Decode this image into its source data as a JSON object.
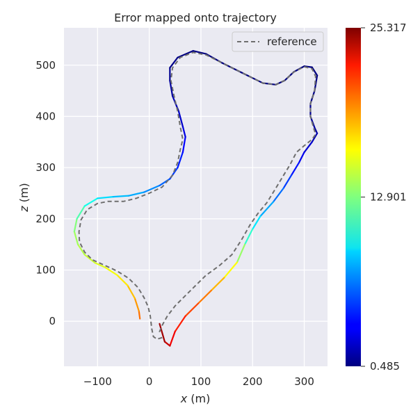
{
  "chart_data": {
    "type": "line",
    "title": "Error mapped onto trajectory",
    "xlabel": "x (m)",
    "ylabel": "z (m)",
    "xlim": [
      -165,
      345
    ],
    "ylim": [
      -88,
      573
    ],
    "xticks": [
      -100,
      0,
      100,
      200,
      300
    ],
    "xtick_labels": [
      "−100",
      "0",
      "100",
      "200",
      "300"
    ],
    "yticks": [
      0,
      100,
      200,
      300,
      400,
      500
    ],
    "ytick_labels": [
      "0",
      "100",
      "200",
      "300",
      "400",
      "500"
    ],
    "grid": true,
    "legend_position": "upper-right",
    "colormap": "jet",
    "colorbar": {
      "min": 0.485,
      "max": 25.317,
      "tick_labels": [
        "0.485",
        "12.901",
        "25.317"
      ],
      "tick_values": [
        0.485,
        12.901,
        25.317
      ]
    },
    "series": [
      {
        "name": "reference",
        "style": "dashed",
        "color": "#6e6e6e",
        "points": [
          [
            25,
            -32
          ],
          [
            15,
            -35
          ],
          [
            8,
            -30
          ],
          [
            5,
            -15
          ],
          [
            2,
            10
          ],
          [
            -2,
            28
          ],
          [
            -10,
            46
          ],
          [
            -22,
            66
          ],
          [
            -40,
            84
          ],
          [
            -62,
            98
          ],
          [
            -88,
            110
          ],
          [
            -110,
            120
          ],
          [
            -125,
            135
          ],
          [
            -135,
            155
          ],
          [
            -136,
            175
          ],
          [
            -132,
            198
          ],
          [
            -120,
            218
          ],
          [
            -100,
            230
          ],
          [
            -80,
            234
          ],
          [
            -50,
            234
          ],
          [
            -25,
            240
          ],
          [
            0,
            250
          ],
          [
            25,
            262
          ],
          [
            45,
            285
          ],
          [
            55,
            310
          ],
          [
            60,
            335
          ],
          [
            65,
            355
          ],
          [
            60,
            380
          ],
          [
            55,
            410
          ],
          [
            48,
            440
          ],
          [
            42,
            470
          ],
          [
            45,
            495
          ],
          [
            60,
            515
          ],
          [
            85,
            525
          ],
          [
            110,
            520
          ],
          [
            140,
            505
          ],
          [
            180,
            485
          ],
          [
            220,
            465
          ],
          [
            245,
            462
          ],
          [
            262,
            470
          ],
          [
            280,
            487
          ],
          [
            300,
            497
          ],
          [
            315,
            493
          ],
          [
            322,
            478
          ],
          [
            320,
            450
          ],
          [
            312,
            425
          ],
          [
            312,
            400
          ],
          [
            318,
            378
          ],
          [
            322,
            365
          ],
          [
            315,
            355
          ],
          [
            300,
            343
          ],
          [
            285,
            330
          ],
          [
            272,
            305
          ],
          [
            260,
            285
          ],
          [
            245,
            260
          ],
          [
            228,
            232
          ],
          [
            210,
            210
          ],
          [
            195,
            188
          ],
          [
            178,
            158
          ],
          [
            160,
            130
          ],
          [
            135,
            108
          ],
          [
            110,
            90
          ],
          [
            90,
            70
          ],
          [
            70,
            50
          ],
          [
            50,
            30
          ],
          [
            35,
            10
          ],
          [
            25,
            -8
          ],
          [
            18,
            -25
          ]
        ]
      },
      {
        "name": "",
        "style": "solid",
        "colored_by_error": true,
        "points": [
          [
            -18,
            5,
            20
          ],
          [
            -20,
            20,
            19
          ],
          [
            -28,
            45,
            18
          ],
          [
            -42,
            70,
            17
          ],
          [
            -62,
            90,
            16
          ],
          [
            -85,
            105,
            15.5
          ],
          [
            -105,
            114,
            15
          ],
          [
            -125,
            130,
            14.5
          ],
          [
            -138,
            150,
            14
          ],
          [
            -145,
            175,
            13.5
          ],
          [
            -140,
            200,
            12.5
          ],
          [
            -125,
            225,
            11
          ],
          [
            -100,
            240,
            9.5
          ],
          [
            -70,
            243,
            8.5
          ],
          [
            -40,
            245,
            8
          ],
          [
            -10,
            252,
            7.5
          ],
          [
            20,
            265,
            6.5
          ],
          [
            40,
            278,
            5.5
          ],
          [
            55,
            300,
            4.5
          ],
          [
            65,
            330,
            4
          ],
          [
            70,
            360,
            3.2
          ],
          [
            65,
            380,
            2.5
          ],
          [
            57,
            410,
            2
          ],
          [
            45,
            440,
            1.5
          ],
          [
            40,
            470,
            1
          ],
          [
            40,
            495,
            0.8
          ],
          [
            55,
            515,
            0.6
          ],
          [
            85,
            528,
            0.5
          ],
          [
            110,
            522,
            0.5
          ],
          [
            140,
            505,
            0.5
          ],
          [
            180,
            485,
            0.5
          ],
          [
            220,
            465,
            0.5
          ],
          [
            245,
            462,
            0.5
          ],
          [
            262,
            470,
            0.5
          ],
          [
            280,
            487,
            0.5
          ],
          [
            300,
            498,
            0.5
          ],
          [
            315,
            496,
            0.5
          ],
          [
            325,
            480,
            0.5
          ],
          [
            320,
            450,
            0.6
          ],
          [
            312,
            425,
            0.8
          ],
          [
            312,
            400,
            1
          ],
          [
            320,
            378,
            1.2
          ],
          [
            325,
            367,
            1.5
          ],
          [
            315,
            350,
            2
          ],
          [
            300,
            330,
            2.8
          ],
          [
            290,
            310,
            3.5
          ],
          [
            275,
            285,
            4.5
          ],
          [
            260,
            260,
            5.5
          ],
          [
            240,
            233,
            7
          ],
          [
            215,
            205,
            8.5
          ],
          [
            200,
            180,
            10
          ],
          [
            185,
            150,
            12
          ],
          [
            170,
            115,
            15
          ],
          [
            145,
            85,
            17
          ],
          [
            120,
            60,
            18.5
          ],
          [
            95,
            35,
            20
          ],
          [
            70,
            10,
            21
          ],
          [
            50,
            -20,
            22
          ],
          [
            40,
            -48,
            23
          ],
          [
            30,
            -40,
            24
          ],
          [
            20,
            -5,
            25
          ]
        ]
      }
    ]
  }
}
